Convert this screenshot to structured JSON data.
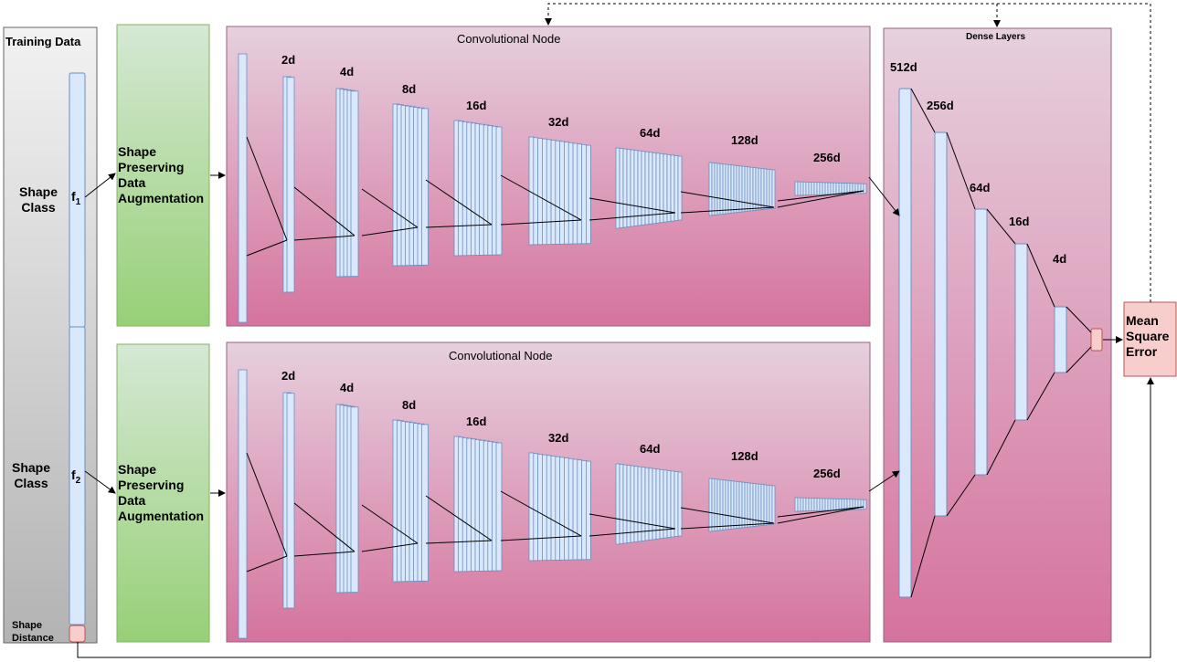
{
  "training_data": {
    "title": "Training Data",
    "shape_class_1": "Shape\nClass",
    "shape_class_2": "Shape\nClass",
    "feature_1": "f",
    "feature_1_sub": "1",
    "feature_2": "f",
    "feature_2_sub": "2",
    "shape_distance": "Shape\nDistance"
  },
  "augmentation": {
    "label_1": "Shape\nPreserving\nData\nAugmentation",
    "label_2": "Shape\nPreserving\nData\nAugmentation"
  },
  "conv_nodes": [
    {
      "title": "Convolutional Node",
      "layers": [
        "2d",
        "4d",
        "8d",
        "16d",
        "32d",
        "64d",
        "128d",
        "256d"
      ]
    },
    {
      "title": "Convolutional Node",
      "layers": [
        "2d",
        "4d",
        "8d",
        "16d",
        "32d",
        "64d",
        "128d",
        "256d"
      ]
    }
  ],
  "dense": {
    "title": "Dense Layers",
    "layers": [
      "512d",
      "256d",
      "64d",
      "16d",
      "4d"
    ]
  },
  "loss": {
    "label": "Mean\nSquare\nError"
  },
  "colors": {
    "training_grad_top": "#f2f2f2",
    "training_grad_bottom": "#b3b3b3",
    "aug_grad_top": "#d5e8d4",
    "aug_grad_bottom": "#97d077",
    "node_grad_top": "#e6d0de",
    "node_grad_bottom": "#d5739d",
    "layer_fill": "#dae8fc",
    "layer_stroke": "#6c8ebf",
    "loss_fill": "#f8cecc",
    "loss_stroke": "#b85450"
  }
}
